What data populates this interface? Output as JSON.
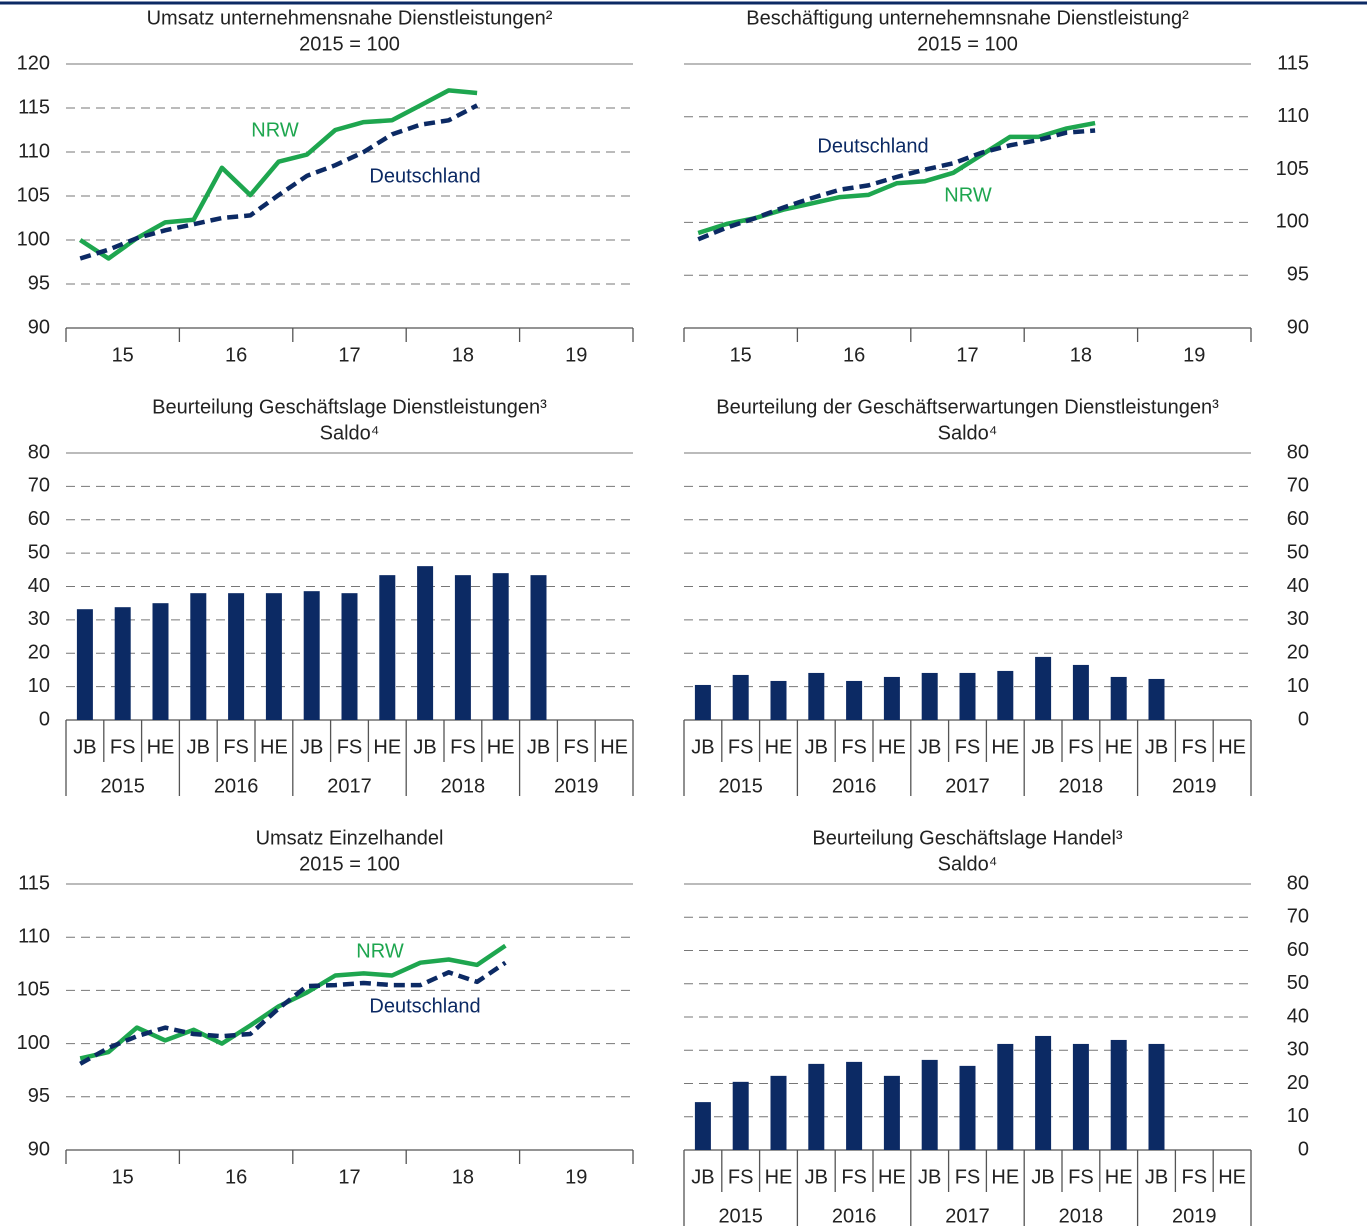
{
  "chart_data": [
    {
      "type": "line",
      "title": "Umsatz unternehmensnahe Dienstleistungen²",
      "subtitle": "2015 = 100",
      "y_axis_side": "left",
      "ylim": [
        90,
        120
      ],
      "yticks": [
        90,
        95,
        100,
        105,
        110,
        115,
        120
      ],
      "grid": true,
      "categories": [
        null,
        null,
        null,
        null,
        null,
        null,
        null,
        null,
        null,
        null,
        null,
        null,
        null,
        null,
        null,
        null,
        null,
        null,
        null,
        null
      ],
      "groups": [
        "15",
        "16",
        "17",
        "18",
        "19"
      ],
      "series": [
        {
          "name": "NRW",
          "color": "#1ea64f",
          "line_style": "solid",
          "values": [
            100,
            97.9,
            100.2,
            102,
            102.3,
            108.2,
            105.1,
            108.9,
            109.7,
            112.5,
            113.4,
            113.6,
            115.3,
            117,
            116.7,
            null,
            null,
            null,
            null,
            null
          ]
        },
        {
          "name": "Deutschland",
          "color": "#0c2a64",
          "line_style": "dashed",
          "values": [
            97.9,
            98.9,
            100.2,
            101.1,
            101.8,
            102.5,
            102.8,
            105.1,
            107.3,
            108.5,
            110,
            112,
            113.1,
            113.6,
            115.3,
            null,
            null,
            null,
            null,
            null
          ]
        }
      ]
    },
    {
      "type": "line",
      "title": "Beschäftigung unternehemnsnahe Dienstleistung²",
      "subtitle": "2015 = 100",
      "y_axis_side": "right",
      "ylim": [
        90,
        115
      ],
      "yticks": [
        90,
        95,
        100,
        105,
        110,
        115
      ],
      "grid": true,
      "categories": [
        null,
        null,
        null,
        null,
        null,
        null,
        null,
        null,
        null,
        null,
        null,
        null,
        null,
        null,
        null,
        null,
        null,
        null,
        null,
        null
      ],
      "groups": [
        "15",
        "16",
        "17",
        "18",
        "19"
      ],
      "series": [
        {
          "name": "NRW",
          "color": "#1ea64f",
          "line_style": "solid",
          "values": [
            99,
            99.85,
            100.4,
            101.2,
            101.8,
            102.4,
            102.6,
            103.7,
            103.9,
            104.7,
            106.4,
            108.1,
            108.1,
            108.9,
            109.4,
            null,
            null,
            null,
            null,
            null
          ]
        },
        {
          "name": "Deutschland",
          "color": "#0c2a64",
          "line_style": "dashed",
          "values": [
            98.4,
            99.5,
            100.4,
            101.4,
            102.3,
            103.1,
            103.5,
            104.3,
            105,
            105.6,
            106.6,
            107.3,
            107.8,
            108.5,
            108.7,
            null,
            null,
            null,
            null,
            null
          ]
        }
      ]
    },
    {
      "type": "bar",
      "title": "Beurteilung Geschäftslage Dienstleistungen³",
      "subtitle": "Saldo⁴",
      "y_axis_side": "left",
      "ylim": [
        0,
        80
      ],
      "yticks": [
        0,
        10,
        20,
        30,
        40,
        50,
        60,
        70,
        80
      ],
      "grid": true,
      "color": "#0c2a64",
      "categories": [
        "JB",
        "FS",
        "HE",
        "JB",
        "FS",
        "HE",
        "JB",
        "FS",
        "HE",
        "JB",
        "FS",
        "HE",
        "JB",
        "FS",
        "HE"
      ],
      "groups": [
        "2015",
        "2016",
        "2017",
        "2018",
        "2019"
      ],
      "values": [
        33.2,
        33.8,
        35,
        38,
        38,
        38,
        38.6,
        38,
        43.4,
        46.1,
        43.4,
        44,
        43.4,
        null,
        null
      ]
    },
    {
      "type": "bar",
      "title": "Beurteilung der Geschäftserwartungen Dienstleistungen³",
      "subtitle": "Saldo⁴",
      "y_axis_side": "right",
      "ylim": [
        0,
        80
      ],
      "yticks": [
        0,
        10,
        20,
        30,
        40,
        50,
        60,
        70,
        80
      ],
      "grid": true,
      "color": "#0c2a64",
      "categories": [
        "JB",
        "FS",
        "HE",
        "JB",
        "FS",
        "HE",
        "JB",
        "FS",
        "HE",
        "JB",
        "FS",
        "HE",
        "JB",
        "FS",
        "HE"
      ],
      "groups": [
        "2015",
        "2016",
        "2017",
        "2018",
        "2019"
      ],
      "values": [
        10.5,
        13.5,
        11.7,
        14.1,
        11.7,
        12.9,
        14.1,
        14.1,
        14.7,
        18.9,
        16.5,
        12.9,
        12.3,
        null,
        null
      ]
    },
    {
      "type": "line",
      "title": "Umsatz Einzelhandel",
      "subtitle": "2015 = 100",
      "y_axis_side": "left",
      "ylim": [
        90,
        115
      ],
      "yticks": [
        90,
        95,
        100,
        105,
        110,
        115
      ],
      "grid": true,
      "categories": [
        null,
        null,
        null,
        null,
        null,
        null,
        null,
        null,
        null,
        null,
        null,
        null,
        null,
        null,
        null,
        null,
        null,
        null,
        null,
        null
      ],
      "groups": [
        "15",
        "16",
        "17",
        "18",
        "19"
      ],
      "series": [
        {
          "name": "NRW",
          "color": "#1ea64f",
          "line_style": "solid",
          "values": [
            98.6,
            99.2,
            101.5,
            100.3,
            101.3,
            100,
            101.7,
            103.5,
            104.8,
            106.4,
            106.6,
            106.4,
            107.6,
            107.9,
            107.4,
            109.2,
            null,
            null,
            null,
            null
          ]
        },
        {
          "name": "Deutschland",
          "color": "#0c2a64",
          "line_style": "dashed",
          "values": [
            98.1,
            99.6,
            100.7,
            101.5,
            100.9,
            100.7,
            100.9,
            103.3,
            105.4,
            105.5,
            105.7,
            105.5,
            105.5,
            106.7,
            105.8,
            107.6,
            null,
            null,
            null,
            null
          ]
        }
      ]
    },
    {
      "type": "bar",
      "title": "Beurteilung Geschäftslage Handel³",
      "subtitle": "Saldo⁴",
      "y_axis_side": "right",
      "ylim": [
        0,
        80
      ],
      "yticks": [
        0,
        10,
        20,
        30,
        40,
        50,
        60,
        70,
        80
      ],
      "grid": true,
      "color": "#0c2a64",
      "categories": [
        "JB",
        "FS",
        "HE",
        "JB",
        "FS",
        "HE",
        "JB",
        "FS",
        "HE",
        "JB",
        "FS",
        "HE",
        "JB",
        "FS",
        "HE"
      ],
      "groups": [
        "2015",
        "2016",
        "2017",
        "2018",
        "2019"
      ],
      "values": [
        14.4,
        20.5,
        22.3,
        25.9,
        26.5,
        22.3,
        27.1,
        25.3,
        31.9,
        34.3,
        31.9,
        33.1,
        31.9,
        null,
        null
      ]
    }
  ]
}
